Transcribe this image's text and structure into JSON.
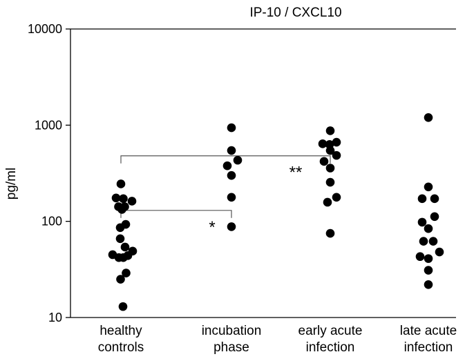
{
  "chart_data": {
    "type": "scatter",
    "title": "IP-10 / CXCL10",
    "ylabel": "pg/ml",
    "xlabel": "",
    "yscale": "log",
    "ylim": [
      10,
      10000
    ],
    "yticks": [
      {
        "value": 10,
        "label": "10"
      },
      {
        "value": 100,
        "label": "100"
      },
      {
        "value": 1000,
        "label": "1000"
      },
      {
        "value": 10000,
        "label": "10000"
      }
    ],
    "grid": false,
    "marker_color": "#000000",
    "categories": [
      {
        "lines": [
          "healthy",
          "controls"
        ]
      },
      {
        "lines": [
          "incubation",
          "phase"
        ]
      },
      {
        "lines": [
          "early acute",
          "infection"
        ]
      },
      {
        "lines": [
          "late acute",
          "infection"
        ]
      }
    ],
    "groups": [
      {
        "points": [
          {
            "offset": 0.0,
            "value": 245
          },
          {
            "offset": -0.7,
            "value": 175
          },
          {
            "offset": 0.35,
            "value": 172
          },
          {
            "offset": 1.6,
            "value": 162
          },
          {
            "offset": -0.35,
            "value": 142
          },
          {
            "offset": 0.55,
            "value": 142
          },
          {
            "offset": 0.15,
            "value": 133
          },
          {
            "offset": 0.7,
            "value": 93
          },
          {
            "offset": -0.1,
            "value": 86
          },
          {
            "offset": -0.1,
            "value": 66
          },
          {
            "offset": 0.6,
            "value": 54
          },
          {
            "offset": 1.7,
            "value": 49
          },
          {
            "offset": -1.2,
            "value": 45
          },
          {
            "offset": -0.3,
            "value": 42
          },
          {
            "offset": 0.35,
            "value": 42
          },
          {
            "offset": 1.0,
            "value": 44
          },
          {
            "offset": 0.75,
            "value": 29
          },
          {
            "offset": -0.05,
            "value": 25
          },
          {
            "offset": 0.3,
            "value": 13
          }
        ]
      },
      {
        "points": [
          {
            "offset": 0.0,
            "value": 940
          },
          {
            "offset": 0.0,
            "value": 545
          },
          {
            "offset": 0.9,
            "value": 432
          },
          {
            "offset": -0.6,
            "value": 378
          },
          {
            "offset": 0.0,
            "value": 300
          },
          {
            "offset": 0.0,
            "value": 178
          },
          {
            "offset": 0.0,
            "value": 88
          }
        ]
      },
      {
        "points": [
          {
            "offset": 0.0,
            "value": 875
          },
          {
            "offset": -1.1,
            "value": 640
          },
          {
            "offset": -0.1,
            "value": 630
          },
          {
            "offset": 0.9,
            "value": 665
          },
          {
            "offset": 0.0,
            "value": 545
          },
          {
            "offset": 0.9,
            "value": 485
          },
          {
            "offset": -0.9,
            "value": 420
          },
          {
            "offset": 0.0,
            "value": 358
          },
          {
            "offset": 0.0,
            "value": 255
          },
          {
            "offset": 0.9,
            "value": 178
          },
          {
            "offset": -0.4,
            "value": 158
          },
          {
            "offset": 0.0,
            "value": 75
          }
        ]
      },
      {
        "points": [
          {
            "offset": 0.0,
            "value": 1200
          },
          {
            "offset": 0.0,
            "value": 228
          },
          {
            "offset": -0.9,
            "value": 172
          },
          {
            "offset": 0.9,
            "value": 172
          },
          {
            "offset": 0.9,
            "value": 112
          },
          {
            "offset": -0.9,
            "value": 98
          },
          {
            "offset": 0.0,
            "value": 84
          },
          {
            "offset": -0.7,
            "value": 62
          },
          {
            "offset": 0.7,
            "value": 62
          },
          {
            "offset": 1.6,
            "value": 48
          },
          {
            "offset": -1.2,
            "value": 43
          },
          {
            "offset": 0.0,
            "value": 41
          },
          {
            "offset": 0.0,
            "value": 31
          },
          {
            "offset": 0.0,
            "value": 22
          }
        ]
      }
    ],
    "annotations": [
      {
        "from": 0,
        "to": 1,
        "level": 130,
        "label": "*"
      },
      {
        "from": 0,
        "to": 2,
        "level": 480,
        "label": "**"
      }
    ]
  }
}
